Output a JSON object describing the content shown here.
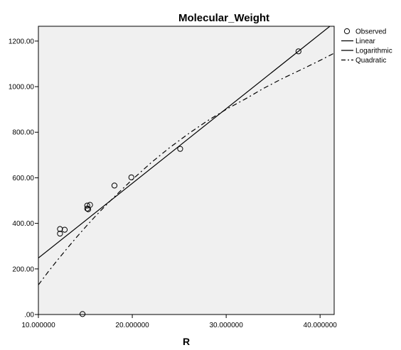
{
  "chart_data": {
    "type": "scatter",
    "title": "Molecular_Weight",
    "xlabel": "R",
    "ylabel": "",
    "xlim": [
      10.0,
      41.5
    ],
    "ylim": [
      0,
      1265
    ],
    "xticks": [
      10,
      20,
      30,
      40
    ],
    "xtick_labels": [
      "10.000000",
      "20.000000",
      "30.000000",
      "40.000000"
    ],
    "yticks": [
      0,
      200,
      400,
      600,
      800,
      1000,
      1200
    ],
    "ytick_labels": [
      ".00",
      "200.00",
      "400.00",
      "600.00",
      "800.00",
      "1000.00",
      "1200.00"
    ],
    "grid": false,
    "legend_position": "right",
    "plot_background": "#f0f0f0",
    "series": [
      {
        "name": "Observed",
        "kind": "points",
        "marker": "open-circle",
        "x": [
          12.3,
          12.3,
          12.8,
          14.7,
          15.2,
          15.2,
          15.3,
          15.5,
          18.1,
          19.9,
          25.1,
          37.7
        ],
        "y": [
          375,
          355,
          372,
          2,
          478,
          465,
          462,
          481,
          566,
          602,
          727,
          1155
        ]
      },
      {
        "name": "Linear",
        "kind": "line",
        "style": "solid",
        "x": [
          10.0,
          41.5
        ],
        "y": [
          248,
          1280
        ]
      },
      {
        "name": "Logarithmic",
        "kind": "line",
        "style": "solid",
        "x": [],
        "y": []
      },
      {
        "name": "Quadratic",
        "kind": "line",
        "style": "dash-dot",
        "x": [
          10.0,
          11.0,
          12.0,
          13.0,
          14.0,
          15.0,
          16.0,
          17.0,
          18.0,
          19.0,
          20.0,
          22.0,
          24.0,
          26.0,
          28.0,
          30.0,
          32.0,
          34.0,
          36.0,
          38.0,
          40.0,
          41.5
        ],
        "y": [
          130,
          185,
          237,
          287,
          336,
          383,
          428,
          471,
          513,
          553,
          592,
          666,
          733,
          794,
          850,
          900,
          945,
          993,
          1036,
          1075,
          1115,
          1147
        ]
      }
    ]
  }
}
